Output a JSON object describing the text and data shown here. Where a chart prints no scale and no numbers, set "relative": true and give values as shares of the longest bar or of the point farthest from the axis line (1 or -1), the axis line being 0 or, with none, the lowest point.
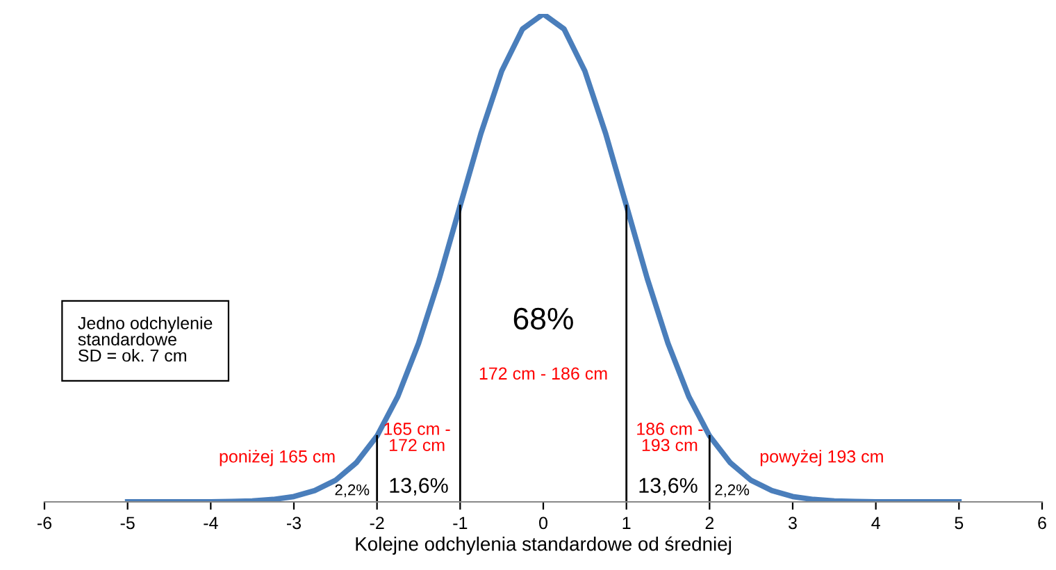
{
  "chart_data": {
    "type": "line",
    "relative": true,
    "xlabel": "Kolejne odchylenia standardowe od średniej",
    "xlim": [
      -6,
      6
    ],
    "xticks": [
      -6,
      -5,
      -4,
      -3,
      -2,
      -1,
      0,
      1,
      2,
      3,
      4,
      5,
      6
    ],
    "series": [
      {
        "color": "#4a7ebb",
        "x": [
          -5,
          -4.75,
          -4.5,
          -4.25,
          -4,
          -3.75,
          -3.5,
          -3.25,
          -3,
          -2.75,
          -2.5,
          -2.25,
          -2,
          -1.75,
          -1.5,
          -1.25,
          -1,
          -0.75,
          -0.5,
          -0.25,
          0,
          0.25,
          0.5,
          0.75,
          1,
          1.25,
          1.5,
          1.75,
          2,
          2.25,
          2.5,
          2.75,
          3,
          3.25,
          3.5,
          3.75,
          4,
          4.25,
          4.5,
          4.75,
          5
        ],
        "values": [
          0.0,
          0.0,
          0.0,
          0.0,
          0.0,
          0.001,
          0.002,
          0.005,
          0.011,
          0.023,
          0.044,
          0.08,
          0.135,
          0.216,
          0.325,
          0.458,
          0.607,
          0.755,
          0.883,
          0.969,
          1.0,
          0.969,
          0.883,
          0.755,
          0.607,
          0.458,
          0.325,
          0.216,
          0.135,
          0.08,
          0.044,
          0.023,
          0.011,
          0.005,
          0.002,
          0.001,
          0.0,
          0.0,
          0.0,
          0.0,
          0.0
        ]
      }
    ],
    "ref_lines": [
      {
        "axis": "x",
        "value": -2,
        "color": "#000000"
      },
      {
        "axis": "x",
        "value": -1,
        "color": "#000000"
      },
      {
        "axis": "x",
        "value": 1,
        "color": "#000000"
      },
      {
        "axis": "x",
        "value": 2,
        "color": "#000000"
      }
    ],
    "annotations": [
      "68%",
      "172 cm - 186 cm",
      "165 cm -\n172 cm",
      "186 cm -\n193 cm",
      "poniżej 165 cm",
      "powyżej 193 cm",
      "13,6%",
      "13,6%",
      "2,2%",
      "2,2%",
      "Jedno odchylenie\nstandardowe\nSD = ok. 7 cm"
    ],
    "grid": false,
    "legend": false,
    "marker": "none",
    "line_style": "solid"
  }
}
